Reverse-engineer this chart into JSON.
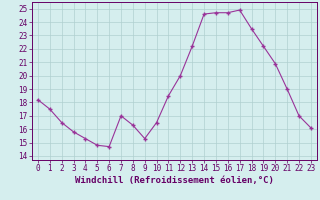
{
  "hours": [
    0,
    1,
    2,
    3,
    4,
    5,
    6,
    7,
    8,
    9,
    10,
    11,
    12,
    13,
    14,
    15,
    16,
    17,
    18,
    19,
    20,
    21,
    22,
    23
  ],
  "values": [
    18.2,
    17.5,
    16.5,
    15.8,
    15.3,
    14.8,
    14.7,
    17.0,
    16.3,
    15.3,
    16.5,
    18.5,
    20.0,
    22.2,
    24.6,
    24.7,
    24.7,
    24.9,
    23.5,
    22.2,
    20.9,
    19.0,
    17.0,
    16.1
  ],
  "line_color": "#993399",
  "marker": "+",
  "markersize": 3.0,
  "markeredgewidth": 1.0,
  "linewidth": 0.8,
  "bg_color": "#d5eeee",
  "grid_color": "#b0d0d0",
  "xlabel": "Windchill (Refroidissement éolien,°C)",
  "xlabel_fontsize": 6.5,
  "ylabel_ticks": [
    14,
    15,
    16,
    17,
    18,
    19,
    20,
    21,
    22,
    23,
    24,
    25
  ],
  "xlim": [
    -0.5,
    23.5
  ],
  "ylim": [
    13.7,
    25.5
  ],
  "tick_fontsize": 5.5,
  "axis_label_color": "#660066",
  "spine_color": "#660066"
}
